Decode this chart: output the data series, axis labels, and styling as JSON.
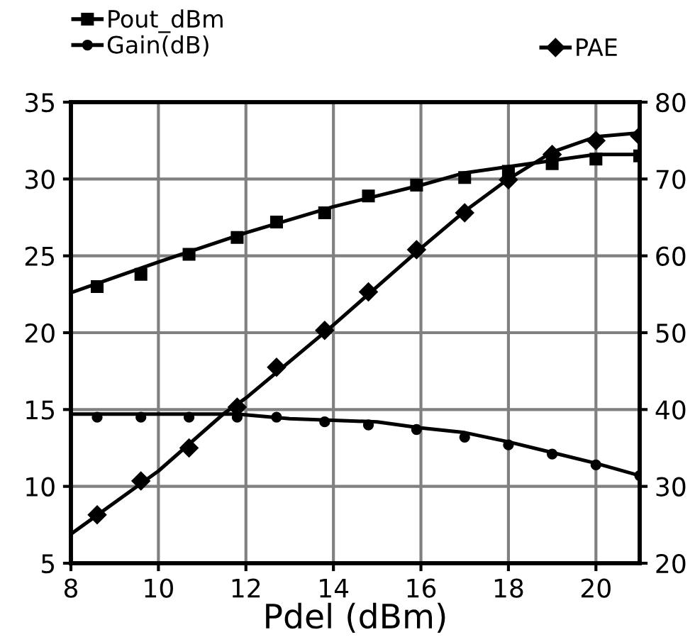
{
  "chart_data": {
    "type": "scatter",
    "xlabel": "Pdel (dBm)",
    "xlim": [
      8,
      21
    ],
    "xticks": [
      8,
      10,
      12,
      14,
      16,
      18,
      20
    ],
    "ylim": [
      5,
      35
    ],
    "yticks": [
      5,
      10,
      15,
      20,
      25,
      30,
      35
    ],
    "y2lim": [
      20,
      80
    ],
    "y2ticks": [
      20,
      30,
      40,
      50,
      60,
      70,
      80
    ],
    "grid": true,
    "legend": "top",
    "series": [
      {
        "name": "Pout_dBm",
        "marker": "square",
        "color": "#000000",
        "x": [
          8.6,
          9.6,
          10.7,
          11.8,
          12.7,
          13.8,
          14.8,
          15.9,
          17,
          18,
          19,
          20,
          21
        ],
        "values": [
          23,
          23.8,
          25.1,
          26.2,
          27.2,
          27.8,
          28.9,
          29.6,
          30.1,
          30.5,
          31.0,
          31.3,
          31.5
        ]
      },
      {
        "name": "Gain(dB)",
        "marker": "circle",
        "color": "#000000",
        "x": [
          8.6,
          9.6,
          10.7,
          11.8,
          12.7,
          13.8,
          14.8,
          15.9,
          17,
          18,
          19,
          20,
          21
        ],
        "values": [
          14.5,
          14.5,
          14.5,
          14.5,
          14.5,
          14.2,
          14.0,
          13.7,
          13.2,
          12.7,
          12.1,
          11.4,
          10.7
        ]
      },
      {
        "name": "PAE",
        "marker": "diamond",
        "axis": "y2",
        "color": "#000000",
        "x": [
          8.6,
          9.6,
          10.7,
          11.8,
          12.7,
          13.8,
          14.8,
          15.9,
          17,
          18,
          19,
          20,
          21
        ],
        "values": [
          26.3,
          30.7,
          35.0,
          40.3,
          45.5,
          50.3,
          55.3,
          60.8,
          65.6,
          69.9,
          73.2,
          75.0,
          75.6
        ]
      },
      {
        "type": "line",
        "marker": "none",
        "color": "#000000",
        "x": [
          8,
          10,
          12,
          14,
          16,
          17,
          18,
          19,
          20,
          21
        ],
        "values": [
          22.6,
          24.6,
          26.5,
          28.2,
          29.6,
          30.4,
          30.8,
          31.2,
          31.6,
          31.6
        ]
      },
      {
        "type": "line",
        "marker": "none",
        "color": "#000000",
        "x": [
          8,
          11.8,
          13,
          15,
          16,
          17,
          18,
          19,
          20,
          21
        ],
        "values": [
          14.7,
          14.7,
          14.4,
          14.2,
          13.8,
          13.5,
          12.9,
          12.2,
          11.5,
          10.7
        ]
      },
      {
        "type": "line",
        "marker": "none",
        "axis": "y2",
        "color": "#000000",
        "x": [
          8,
          10,
          11.5,
          12,
          14,
          16,
          17,
          18,
          19,
          20,
          21
        ],
        "values": [
          23.8,
          32,
          39.5,
          41.5,
          51,
          61,
          65.8,
          70,
          73.5,
          75.5,
          76
        ]
      }
    ]
  }
}
